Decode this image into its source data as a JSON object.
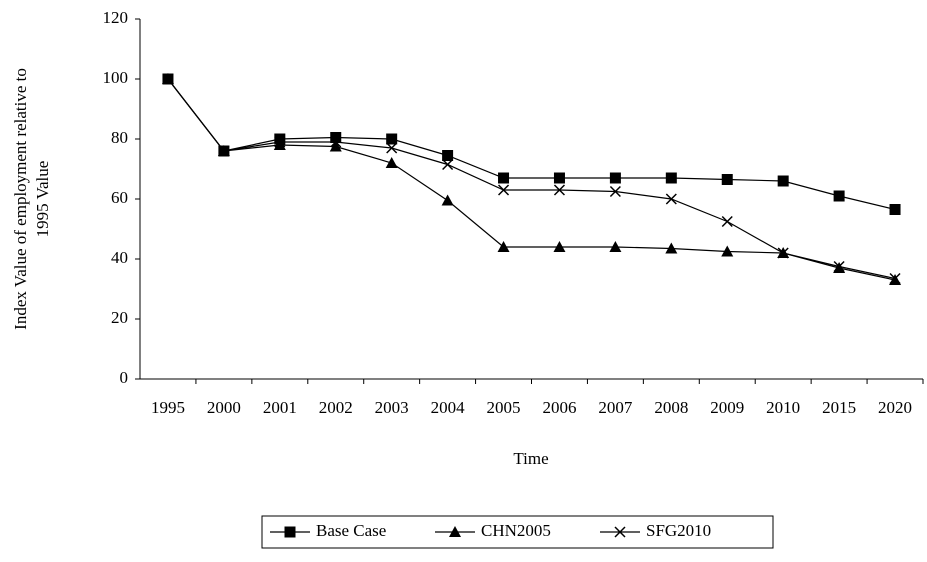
{
  "chart_data": {
    "type": "line",
    "y_label": [
      "Index Value of employment relative to",
      "1995 Value"
    ],
    "x_label": "Time",
    "categories": [
      "1995",
      "2000",
      "2001",
      "2002",
      "2003",
      "2004",
      "2005",
      "2006",
      "2007",
      "2008",
      "2009",
      "2010",
      "2015",
      "2020"
    ],
    "series": [
      {
        "name": "Base Case",
        "color": "#000000",
        "marker": "square",
        "values": [
          100,
          76,
          80,
          80.5,
          80,
          74.5,
          67,
          67,
          67,
          67,
          66.5,
          66,
          61,
          56.5
        ]
      },
      {
        "name": "CHN2005",
        "color": "#000000",
        "marker": "triangle",
        "values": [
          100,
          76,
          78,
          77.5,
          72,
          59.5,
          44,
          44,
          44,
          43.5,
          42.5,
          42,
          37,
          33
        ]
      },
      {
        "name": "SFG2010",
        "color": "#000000",
        "marker": "x",
        "values": [
          100,
          76,
          79,
          79,
          77,
          71.5,
          63,
          63,
          62.5,
          60,
          52.5,
          42,
          37.5,
          33.5
        ]
      }
    ],
    "ylim": [
      0,
      120
    ],
    "yticks": [
      0,
      20,
      40,
      60,
      80,
      100,
      120
    ],
    "grid": false,
    "legend": "bottom"
  }
}
